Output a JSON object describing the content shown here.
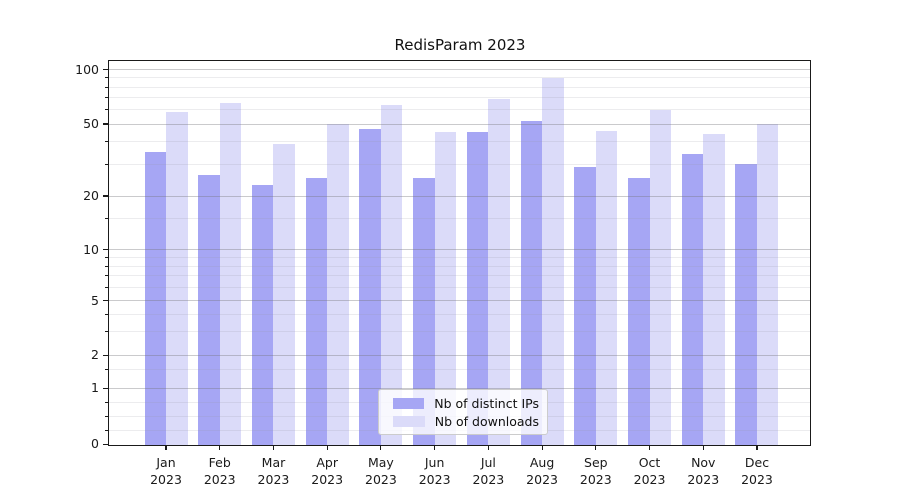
{
  "title": "RedisParam 2023",
  "chart_data": {
    "type": "bar",
    "title": "RedisParam 2023",
    "categories": [
      "Jan",
      "Feb",
      "Mar",
      "Apr",
      "May",
      "Jun",
      "Jul",
      "Aug",
      "Sep",
      "Oct",
      "Nov",
      "Dec"
    ],
    "x_year_label": "2023",
    "series": [
      {
        "name": "Nb of distinct IPs",
        "color": "#a6a6f4",
        "values": [
          35,
          26,
          23,
          25,
          47,
          25,
          45,
          52,
          29,
          25,
          34,
          30
        ]
      },
      {
        "name": "Nb of downloads",
        "color": "#dbdbf9",
        "values": [
          58,
          65,
          39,
          50,
          64,
          45,
          69,
          90,
          46,
          60,
          44,
          50
        ]
      }
    ],
    "yscale": "symlog",
    "ylim": [
      0,
      112
    ],
    "yticks": [
      "0",
      "1",
      "2",
      "5",
      "10",
      "20",
      "50",
      "100"
    ],
    "yticks_minor": [
      0.25,
      0.5,
      0.75,
      1.5,
      3,
      4,
      6,
      7,
      8,
      9,
      15,
      30,
      40,
      60,
      70,
      80,
      90
    ],
    "grid": true,
    "legend_position": "lower center"
  },
  "legend": {
    "entries": [
      "Nb of distinct IPs",
      "Nb of downloads"
    ]
  }
}
